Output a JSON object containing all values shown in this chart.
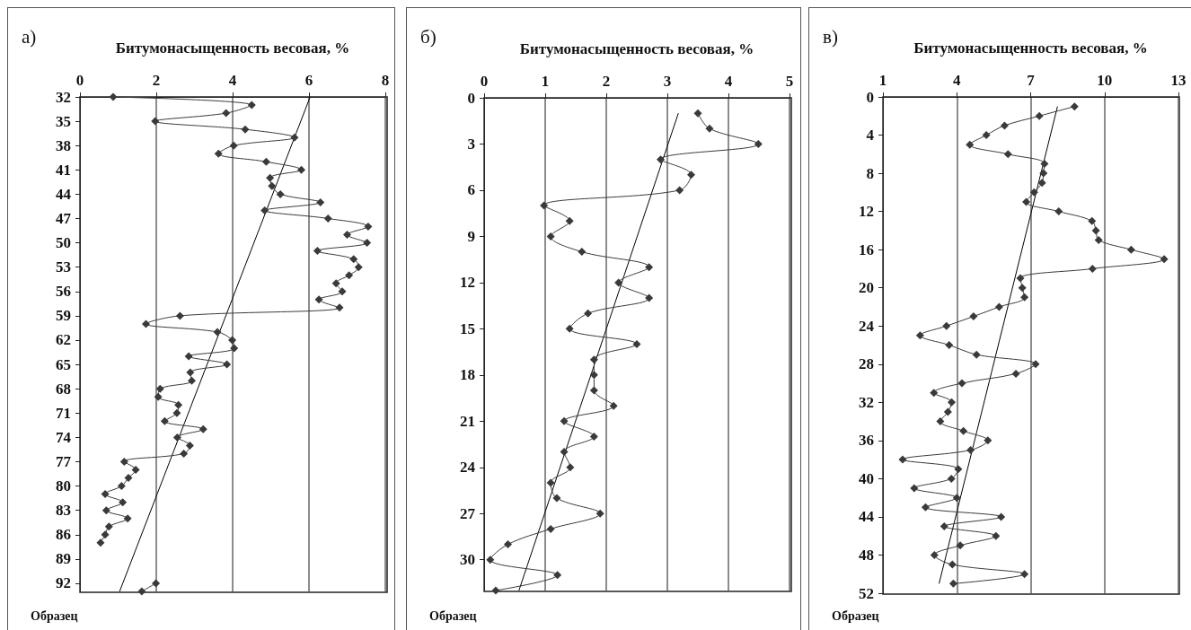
{
  "chart_data": [
    {
      "type": "line",
      "title": "а)",
      "xlabel": "Битумонасыщенность весовая, %",
      "ylabel": "Образец",
      "xlim": [
        0,
        8
      ],
      "xticks": [
        0,
        2,
        4,
        6,
        8
      ],
      "ylim": [
        93,
        32
      ],
      "yticks": [
        32,
        35,
        38,
        41,
        44,
        47,
        50,
        53,
        56,
        59,
        62,
        65,
        68,
        71,
        74,
        77,
        80,
        83,
        86,
        89,
        92
      ],
      "grid": "x",
      "marker": "diamond",
      "series": [
        {
          "color": "#3a3a3a",
          "x": [
            0.87,
            4.5,
            3.83,
            1.97,
            4.33,
            5.62,
            4.03,
            3.63,
            4.88,
            5.8,
            4.98,
            5.03,
            5.25,
            6.3,
            4.84,
            6.5,
            7.55,
            7.0,
            7.52,
            6.22,
            7.17,
            7.3,
            7.05,
            6.71,
            6.87,
            6.26,
            6.8,
            2.62,
            1.73,
            3.6,
            3.99,
            4.04,
            2.85,
            3.85,
            2.89,
            2.93,
            2.1,
            2.05,
            2.58,
            2.54,
            2.22,
            3.23,
            2.55,
            2.88,
            2.72,
            1.16,
            1.46,
            1.27,
            1.09,
            0.66,
            1.12,
            0.69,
            1.25,
            0.76,
            0.66,
            0.54,
            null,
            1.99,
            1.62
          ],
          "values": [
            32,
            33,
            34,
            35,
            36,
            37,
            38,
            39,
            40,
            41,
            42,
            43,
            44,
            45,
            46,
            47,
            48,
            49,
            50,
            51,
            52,
            53,
            54,
            55,
            56,
            57,
            58,
            59,
            60,
            61,
            62,
            63,
            64,
            65,
            66,
            67,
            68,
            69,
            70,
            71,
            72,
            73,
            74,
            75,
            76,
            77,
            78,
            79,
            80,
            81,
            82,
            83,
            84,
            85,
            86,
            87,
            null,
            92,
            93
          ]
        },
        {
          "type": "line",
          "color": "#000000",
          "marker": "none",
          "x": [
            6.03,
            1.04
          ],
          "values": [
            32,
            93
          ]
        }
      ]
    },
    {
      "type": "line",
      "title": "б)",
      "xlabel": "Битумонасыщенность весовая, %",
      "ylabel": "Образец",
      "xlim": [
        0,
        5
      ],
      "xticks": [
        0,
        1,
        2,
        3,
        4,
        5
      ],
      "ylim": [
        32,
        0
      ],
      "yticks": [
        0,
        3,
        6,
        9,
        12,
        15,
        18,
        21,
        24,
        27,
        30
      ],
      "grid": "x",
      "marker": "diamond",
      "series": [
        {
          "color": "#3a3a3a",
          "x": [
            3.5,
            3.69,
            4.49,
            2.89,
            3.39,
            3.2,
            0.98,
            1.4,
            1.09,
            1.6,
            2.7,
            2.2,
            2.7,
            1.7,
            1.4,
            2.5,
            1.8,
            1.8,
            1.8,
            2.12,
            1.31,
            1.8,
            1.31,
            1.41,
            1.09,
            1.19,
            1.9,
            1.09,
            0.39,
            0.1,
            1.2,
            0.19
          ],
          "values": [
            1,
            2,
            3,
            4,
            5,
            6,
            7,
            8,
            9,
            10,
            11,
            12,
            13,
            14,
            15,
            16,
            17,
            18,
            19,
            20,
            21,
            22,
            23,
            24,
            25,
            26,
            27,
            28,
            29,
            30,
            31,
            32
          ]
        },
        {
          "type": "line",
          "color": "#000000",
          "marker": "none",
          "x": [
            3.18,
            0.57
          ],
          "values": [
            1,
            32
          ]
        }
      ]
    },
    {
      "type": "line",
      "title": "в)",
      "xlabel": "Битумонасыщенность весовая, %",
      "ylabel": "Образец",
      "xlim": [
        1,
        13
      ],
      "xticks": [
        1,
        4,
        7,
        10,
        13
      ],
      "ylim": [
        52,
        0
      ],
      "yticks": [
        0,
        4,
        8,
        12,
        16,
        20,
        24,
        28,
        32,
        36,
        40,
        44,
        48,
        52
      ],
      "grid": "x",
      "marker": "diamond",
      "series": [
        {
          "color": "#3a3a3a",
          "x": [
            8.78,
            7.35,
            5.94,
            5.2,
            4.53,
            6.08,
            7.56,
            7.52,
            7.46,
            7.14,
            6.82,
            8.14,
            9.49,
            9.65,
            9.76,
            11.08,
            12.42,
            9.51,
            6.58,
            6.66,
            6.75,
            5.72,
            4.68,
            3.58,
            2.51,
            3.69,
            4.8,
            7.2,
            6.4,
            4.21,
            3.07,
            3.79,
            3.64,
            3.33,
            4.27,
            5.26,
            4.56,
            1.8,
            4.06,
            3.78,
            2.27,
            4.0,
            2.73,
            5.8,
            3.49,
            5.59,
            4.14,
            3.09,
            3.82,
            6.75,
            3.86
          ],
          "values": [
            1,
            2,
            3,
            4,
            5,
            6,
            7,
            8,
            9,
            10,
            11,
            12,
            13,
            14,
            15,
            16,
            17,
            18,
            19,
            20,
            21,
            22,
            23,
            24,
            25,
            26,
            27,
            28,
            29,
            30,
            31,
            32,
            33,
            34,
            35,
            36,
            37,
            38,
            39,
            40,
            41,
            42,
            43,
            44,
            45,
            46,
            47,
            48,
            49,
            50,
            51
          ]
        },
        {
          "type": "line",
          "color": "#000000",
          "marker": "none",
          "x": [
            8.09,
            3.28
          ],
          "values": [
            1,
            51
          ]
        }
      ]
    }
  ]
}
